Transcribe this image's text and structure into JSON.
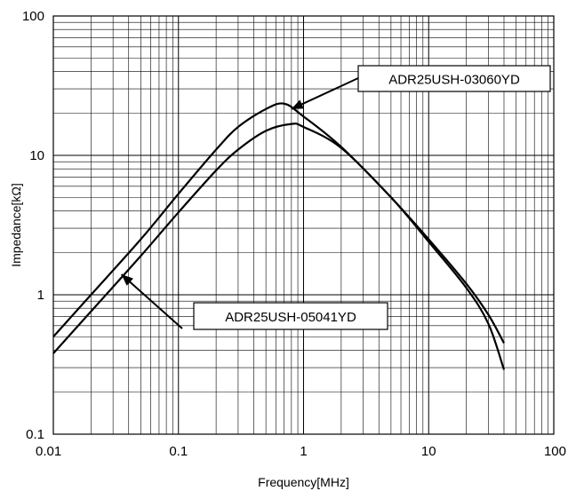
{
  "chart_data": {
    "type": "line",
    "title": "",
    "xlabel": "Frequency[MHz]",
    "ylabel": "Impedance[kΩ]",
    "x_scale": "log",
    "y_scale": "log",
    "xlim": [
      0.01,
      100
    ],
    "ylim": [
      0.1,
      100
    ],
    "grid": true,
    "x_ticks": [
      {
        "value": 0.01,
        "label": "0.01"
      },
      {
        "value": 0.1,
        "label": "0.1"
      },
      {
        "value": 1,
        "label": "1"
      },
      {
        "value": 10,
        "label": "10"
      },
      {
        "value": 100,
        "label": "100"
      }
    ],
    "y_ticks": [
      {
        "value": 0.1,
        "label": "0.1"
      },
      {
        "value": 1,
        "label": "1"
      },
      {
        "value": 10,
        "label": "10"
      },
      {
        "value": 100,
        "label": "100"
      }
    ],
    "series": [
      {
        "name": "ADR25USH-03060YD",
        "x": [
          0.01,
          0.02,
          0.05,
          0.1,
          0.2,
          0.3,
          0.5,
          0.7,
          1.0,
          2.0,
          5.0,
          10,
          20,
          30,
          40
        ],
        "y": [
          0.5,
          1.0,
          2.5,
          5.3,
          11.0,
          16.0,
          21.5,
          23.5,
          19.0,
          11.5,
          5.0,
          2.5,
          1.2,
          0.72,
          0.45
        ]
      },
      {
        "name": "ADR25USH-05041YD",
        "x": [
          0.01,
          0.02,
          0.05,
          0.1,
          0.2,
          0.3,
          0.5,
          0.8,
          1.0,
          2.0,
          5.0,
          10,
          20,
          30,
          40
        ],
        "y": [
          0.38,
          0.76,
          1.9,
          3.9,
          7.8,
          11.0,
          15.0,
          16.8,
          16.0,
          11.3,
          5.0,
          2.4,
          1.12,
          0.62,
          0.29
        ]
      }
    ],
    "annotations": [
      {
        "text": "ADR25USH-03060YD",
        "target_x": 0.8,
        "target_y": 21.5
      },
      {
        "text": "ADR25USH-05041YD",
        "target_x": 0.035,
        "target_y": 1.4
      }
    ]
  }
}
